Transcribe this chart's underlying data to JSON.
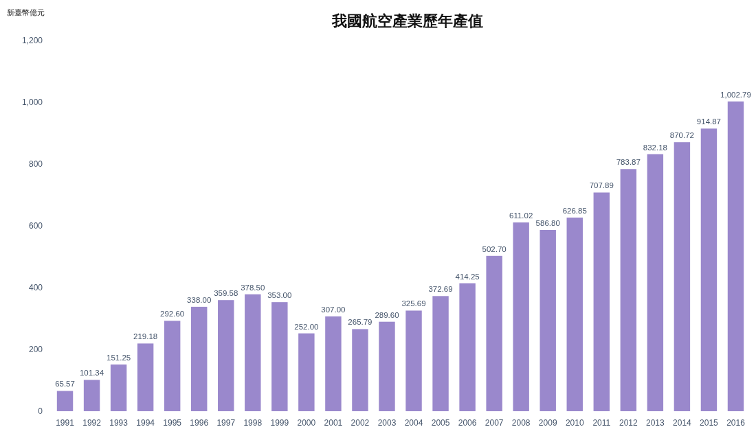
{
  "chart_data": {
    "type": "bar",
    "title": "我國航空產業歷年產值",
    "ylabel": "新臺幣億元",
    "categories": [
      "1991",
      "1992",
      "1993",
      "1994",
      "1995",
      "1996",
      "1997",
      "1998",
      "1999",
      "2000",
      "2001",
      "2002",
      "2003",
      "2004",
      "2005",
      "2006",
      "2007",
      "2008",
      "2009",
      "2010",
      "2011",
      "2012",
      "2013",
      "2014",
      "2015",
      "2016"
    ],
    "values": [
      65.57,
      101.34,
      151.25,
      219.18,
      292.6,
      338.0,
      359.58,
      378.5,
      353.0,
      252.0,
      307.0,
      265.79,
      289.6,
      325.69,
      372.69,
      414.25,
      502.7,
      611.02,
      586.8,
      626.85,
      707.89,
      783.87,
      832.18,
      870.72,
      914.87,
      1002.79
    ],
    "value_labels": [
      "65.57",
      "101.34",
      "151.25",
      "219.18",
      "292.60",
      "338.00",
      "359.58",
      "378.50",
      "353.00",
      "252.00",
      "307.00",
      "265.79",
      "289.60",
      "325.69",
      "372.69",
      "414.25",
      "502.70",
      "611.02",
      "586.80",
      "626.85",
      "707.89",
      "783.87",
      "832.18",
      "870.72",
      "914.87",
      "1,002.79"
    ],
    "color": "#9a88cc",
    "ylim": [
      0,
      1200
    ],
    "yticks": [
      0,
      200,
      400,
      600,
      800,
      {
        "value": 1000,
        "label": "1,000"
      },
      {
        "value": 1200,
        "label": "1,200"
      }
    ],
    "grid": false
  }
}
